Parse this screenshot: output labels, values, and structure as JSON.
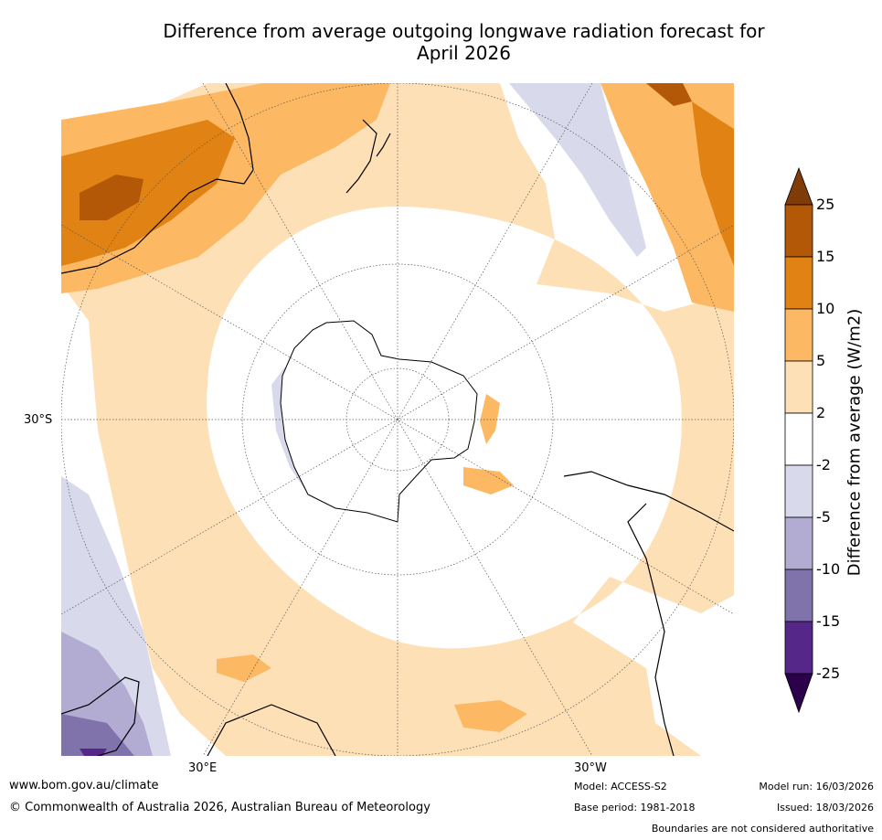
{
  "title_line1": "Difference from average outgoing longwave radiation forecast for",
  "title_line2": "April 2026",
  "map": {
    "projection": "south-polar-stereographic",
    "latitude_labels": [
      "30°S"
    ],
    "longitude_labels": [
      "30°E",
      "30°W"
    ]
  },
  "colorbar": {
    "label": "Difference from average (W/m2)",
    "ticks": [
      "25",
      "15",
      "10",
      "5",
      "2",
      "-2",
      "-5",
      "-10",
      "-15",
      "-25"
    ],
    "colors": [
      "#7f3b08",
      "#b35806",
      "#e08214",
      "#fdb863",
      "#fee0b6",
      "#ffffff",
      "#d8daeb",
      "#b2abd2",
      "#8073ac",
      "#542788",
      "#2d004b"
    ]
  },
  "footer": {
    "website": "www.bom.gov.au/climate",
    "copyright": "© Commonwealth of Australia 2026, Australian Bureau of Meteorology",
    "model": "Model: ACCESS-S2",
    "base_period": "Base period: 1981-2018",
    "model_run": "Model run: 16/03/2026",
    "issued": "Issued: 18/03/2026",
    "disclaimer": "Boundaries are not considered authoritative"
  }
}
